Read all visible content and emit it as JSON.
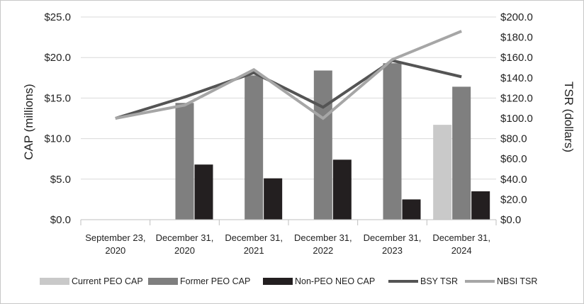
{
  "chart_data": {
    "type": "bar",
    "categories": [
      [
        "September 23,",
        "2020"
      ],
      [
        "December 31,",
        "2020"
      ],
      [
        "December 31,",
        "2021"
      ],
      [
        "December 31,",
        "2022"
      ],
      [
        "December 31,",
        "2023"
      ],
      [
        "December 31,",
        "2024"
      ]
    ],
    "ylabel": "CAP (millions)",
    "ylabel_right": "TSR (dollars)",
    "ylim": [
      0,
      25
    ],
    "ylim_right": [
      0,
      200
    ],
    "yticks": [
      "$0.0",
      "$5.0",
      "$10.0",
      "$15.0",
      "$20.0",
      "$25.0"
    ],
    "yticks_right": [
      "$0.0",
      "$20.0",
      "$40.0",
      "$60.0",
      "$80.0",
      "$100.0",
      "$120.0",
      "$140.0",
      "$160.0",
      "$180.0",
      "$200.0"
    ],
    "bar_series": [
      {
        "name": "Current PEO CAP",
        "color": "#c9c9c9",
        "values": [
          null,
          null,
          null,
          null,
          null,
          11.7
        ]
      },
      {
        "name": "Former PEO CAP",
        "color": "#7f7f7f",
        "values": [
          null,
          14.4,
          17.8,
          18.4,
          19.3,
          16.4
        ]
      },
      {
        "name": "Non-PEO NEO CAP",
        "color": "#231f20",
        "values": [
          null,
          6.8,
          5.1,
          7.4,
          2.5,
          3.5
        ]
      }
    ],
    "line_series": [
      {
        "name": "BSY TSR",
        "color": "#545454",
        "axis": "right",
        "values": [
          100,
          121,
          145,
          111,
          157,
          141
        ]
      },
      {
        "name": "NBSI TSR",
        "color": "#a6a6a6",
        "axis": "right",
        "values": [
          100,
          113,
          148,
          100,
          158,
          186
        ]
      }
    ],
    "legend_position": "bottom"
  }
}
